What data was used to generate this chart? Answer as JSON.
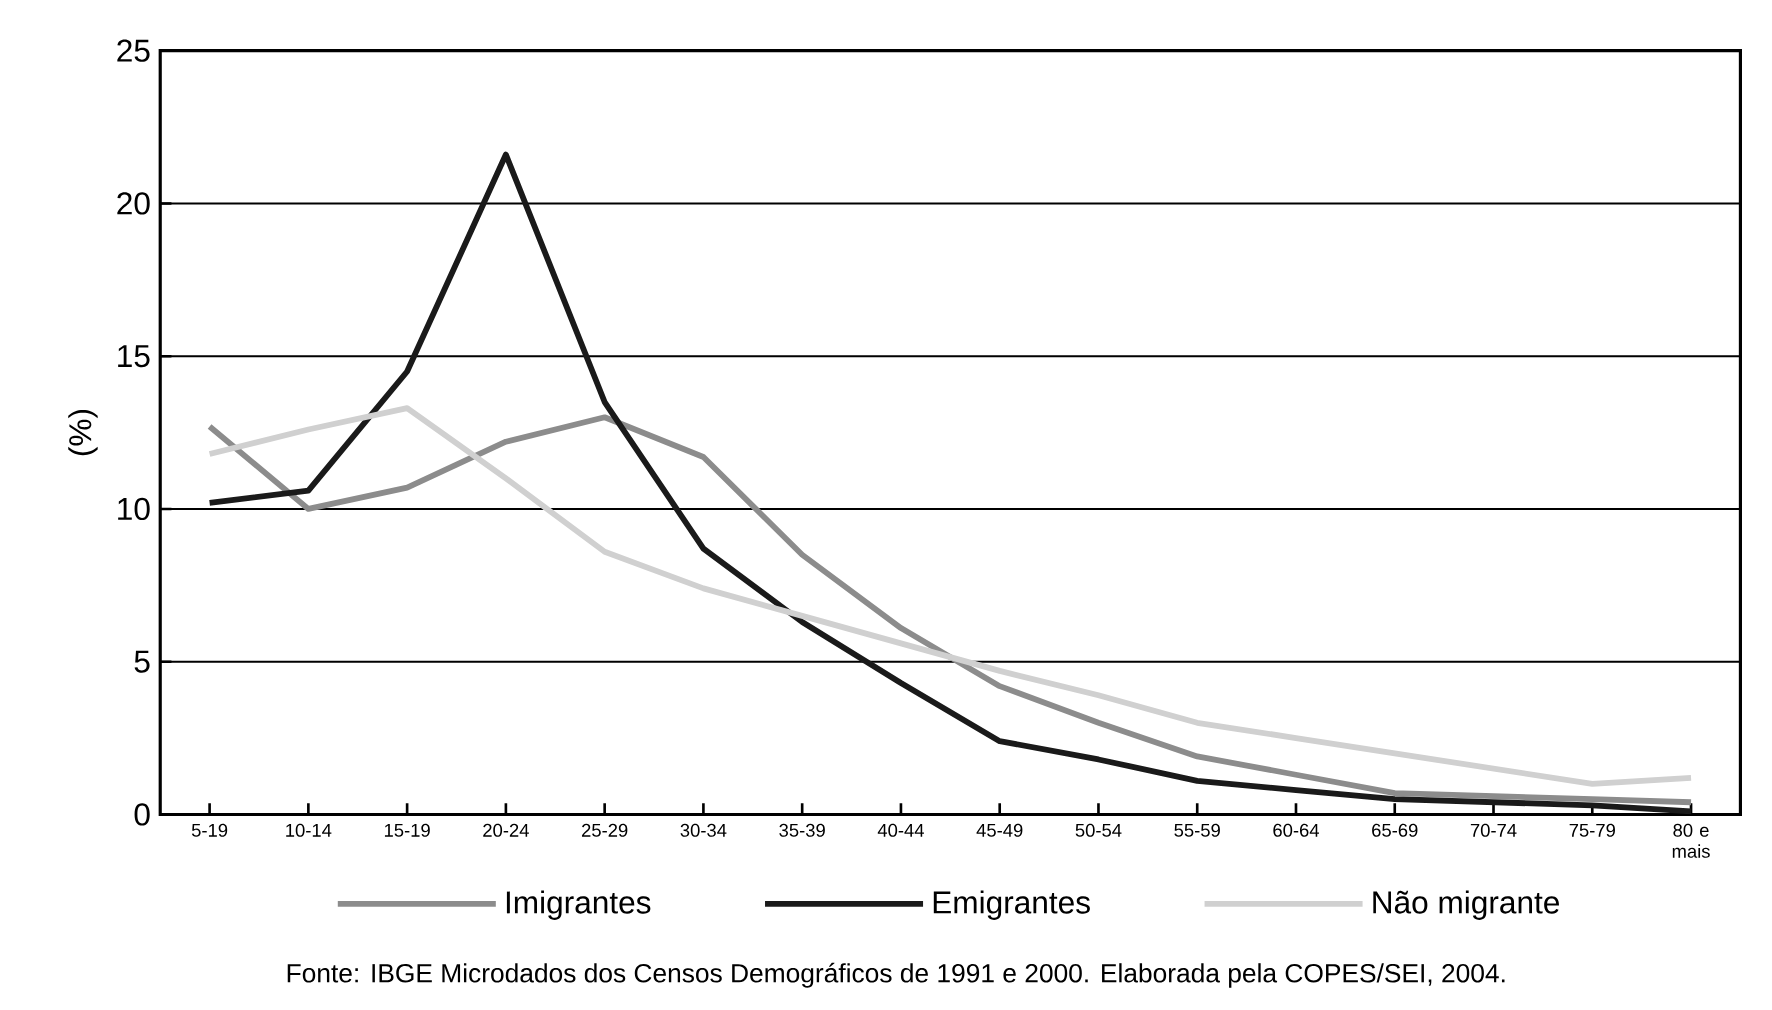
{
  "chart_data": {
    "type": "line",
    "ylabel": "(%)",
    "categories": [
      "5-19",
      "10-14",
      "15-19",
      "20-24",
      "25-29",
      "30-34",
      "35-39",
      "40-44",
      "45-49",
      "50-54",
      "55-59",
      "60-64",
      "65-69",
      "70-74",
      "75-79",
      "80 e mais"
    ],
    "series": [
      {
        "name": "Imigrantes",
        "color": "#8c8c8c",
        "values": [
          12.7,
          10.0,
          10.7,
          12.2,
          13.0,
          11.7,
          8.5,
          6.1,
          4.2,
          3.0,
          1.9,
          1.3,
          0.7,
          0.6,
          0.5,
          0.4
        ]
      },
      {
        "name": "Emigrantes",
        "color": "#1a1a1a",
        "values": [
          10.2,
          10.6,
          14.5,
          21.6,
          13.5,
          8.7,
          6.3,
          4.3,
          2.4,
          1.8,
          1.1,
          0.8,
          0.5,
          0.4,
          0.3,
          0.1
        ]
      },
      {
        "name": "Não migrante",
        "color": "#d0d0d0",
        "values": [
          11.8,
          12.6,
          13.3,
          11.0,
          8.6,
          7.4,
          6.5,
          5.6,
          4.7,
          3.9,
          3.0,
          2.5,
          2.0,
          1.5,
          1.0,
          1.2
        ]
      }
    ],
    "ylim": [
      0,
      25
    ],
    "yticks": [
      0,
      5,
      10,
      15,
      20,
      25
    ],
    "grid": "y",
    "legend": "bottom",
    "marker": "none",
    "line_style": "solid",
    "annotations": [
      "Fonte: IBGE Microdados dos Censos Demográficos de 1991 e 2000. Elaborada pela COPES/SEI, 2004."
    ]
  }
}
